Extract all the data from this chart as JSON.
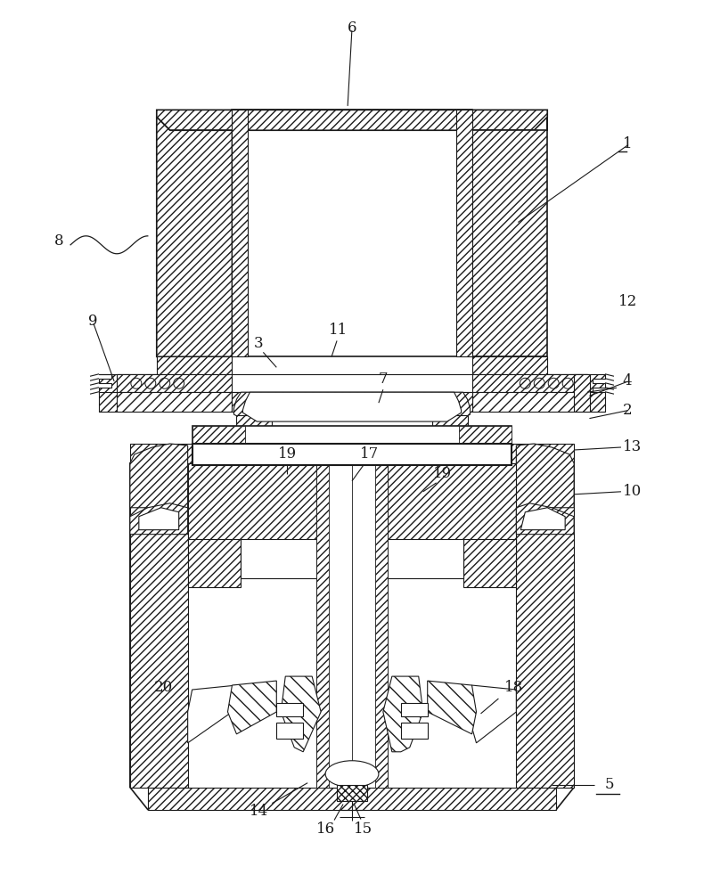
{
  "bg": "#ffffff",
  "lc": "#1a1a1a",
  "fw": 7.9,
  "fh": 10.0,
  "fs": 12
}
